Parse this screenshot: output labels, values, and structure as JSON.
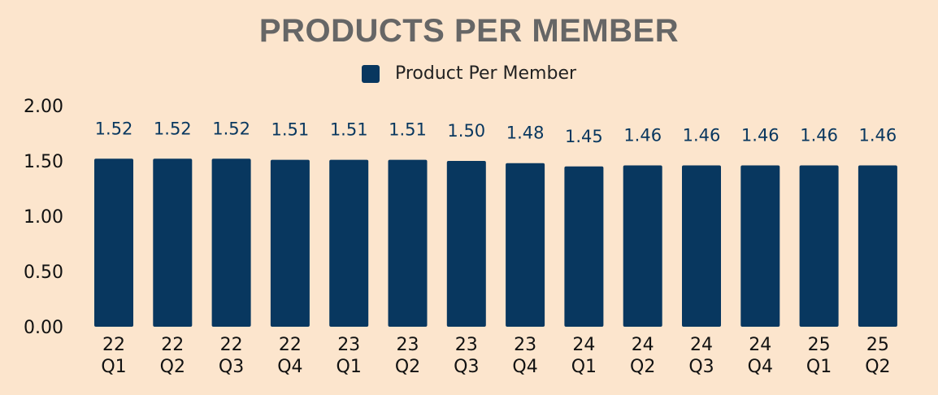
{
  "chart_data": {
    "type": "bar",
    "title": "PRODUCTS PER MEMBER",
    "categories": [
      [
        "22",
        "Q1"
      ],
      [
        "22",
        "Q2"
      ],
      [
        "22",
        "Q3"
      ],
      [
        "22",
        "Q4"
      ],
      [
        "23",
        "Q1"
      ],
      [
        "23",
        "Q2"
      ],
      [
        "23",
        "Q3"
      ],
      [
        "23",
        "Q4"
      ],
      [
        "24",
        "Q1"
      ],
      [
        "24",
        "Q2"
      ],
      [
        "24",
        "Q3"
      ],
      [
        "24",
        "Q4"
      ],
      [
        "25",
        "Q1"
      ],
      [
        "25",
        "Q2"
      ]
    ],
    "series": [
      {
        "name": "Product Per Member",
        "values": [
          1.52,
          1.52,
          1.52,
          1.51,
          1.51,
          1.51,
          1.5,
          1.48,
          1.45,
          1.46,
          1.46,
          1.46,
          1.46,
          1.46
        ],
        "labels": [
          "1.52",
          "1.52",
          "1.52",
          "1.51",
          "1.51",
          "1.51",
          "1.50",
          "1.48",
          "1.45",
          "1.46",
          "1.46",
          "1.46",
          "1.46",
          "1.46"
        ]
      }
    ],
    "yticks": [
      "0.00",
      "0.50",
      "1.00",
      "1.50",
      "2.00"
    ],
    "ylim": [
      0,
      2
    ],
    "xlabel": "",
    "ylabel": "",
    "grid": false,
    "legend": "top-center",
    "colors": {
      "bar": "#08375f",
      "data_label": "#08375f",
      "title": "#666666",
      "background": "#fce5cd",
      "axis_text": "#111111"
    }
  }
}
